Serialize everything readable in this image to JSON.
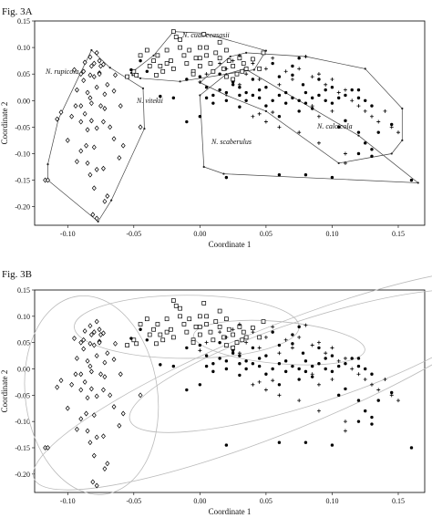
{
  "chart_data": [
    {
      "type": "scatter",
      "figure_label": "Fig. 3A",
      "xlabel": "Coordinate 1",
      "ylabel": "Coordinate 2",
      "xlim": [
        -0.125,
        0.17
      ],
      "ylim": [
        -0.235,
        0.15
      ],
      "xticks": [
        "-0.10",
        "-0.05",
        "0.00",
        "0.05",
        "0.10",
        "0.15"
      ],
      "yticks": [
        "0.15",
        "0.10",
        "0.05",
        "0.00",
        "-0.05",
        "-0.10",
        "-0.15",
        "-0.20"
      ],
      "enclosure": "convex-hull",
      "groups": [
        {
          "name": "N. rupicola",
          "label": "N. rupicola",
          "marker": "diamond",
          "hull": [
            [
              -0.115,
              -0.15
            ],
            [
              -0.115,
              -0.12
            ],
            [
              -0.107,
              -0.035
            ],
            [
              -0.082,
              0.095
            ],
            [
              -0.068,
              0.062
            ],
            [
              -0.043,
              0.023
            ],
            [
              -0.042,
              -0.053
            ],
            [
              -0.067,
              -0.188
            ],
            [
              -0.077,
              -0.228
            ]
          ]
        },
        {
          "name": "N. vitekii",
          "label": "N. vitekii",
          "marker": "circle"
        },
        {
          "name": "N. cuatrecasasii",
          "label": "N. cuatrecasasii",
          "marker": "square",
          "hull": [
            [
              -0.051,
              0.048
            ],
            [
              -0.052,
              0.052
            ],
            [
              -0.035,
              0.085
            ],
            [
              -0.02,
              0.13
            ],
            [
              0.003,
              0.127
            ],
            [
              0.05,
              0.094
            ],
            [
              0.041,
              0.058
            ],
            [
              -0.015,
              0.036
            ],
            [
              -0.045,
              0.042
            ]
          ]
        },
        {
          "name": "N. scaberulus",
          "label": "N. scaberulus",
          "marker": "circle",
          "hull": [
            [
              0.0,
              0.01
            ],
            [
              0.003,
              -0.125
            ],
            [
              0.018,
              -0.138
            ],
            [
              0.165,
              -0.155
            ],
            [
              0.12,
              -0.066
            ],
            [
              0.034,
              0.06
            ],
            [
              0.02,
              0.05
            ]
          ]
        },
        {
          "name": "N. calcicola",
          "label": "N. calcicola",
          "marker": "plus",
          "hull": [
            [
              0.0,
              0.034
            ],
            [
              0.023,
              0.083
            ],
            [
              0.035,
              0.09
            ],
            [
              0.08,
              0.083
            ],
            [
              0.125,
              0.06
            ],
            [
              0.153,
              -0.015
            ],
            [
              0.153,
              -0.075
            ],
            [
              0.145,
              -0.1
            ],
            [
              0.105,
              -0.118
            ],
            [
              0.05,
              -0.02
            ],
            [
              0.02,
              0.01
            ]
          ]
        }
      ],
      "points": {
        "diamond": [
          [
            -0.117,
            -0.15
          ],
          [
            -0.115,
            -0.15
          ],
          [
            -0.1,
            -0.075
          ],
          [
            -0.108,
            -0.035
          ],
          [
            -0.105,
            -0.022
          ],
          [
            -0.097,
            -0.03
          ],
          [
            -0.087,
            -0.025
          ],
          [
            -0.09,
            -0.01
          ],
          [
            -0.082,
            -0.005
          ],
          [
            -0.075,
            -0.01
          ],
          [
            -0.083,
            0.005
          ],
          [
            -0.09,
            -0.04
          ],
          [
            -0.085,
            -0.055
          ],
          [
            -0.078,
            -0.052
          ],
          [
            -0.073,
            -0.04
          ],
          [
            -0.068,
            -0.05
          ],
          [
            -0.065,
            -0.072
          ],
          [
            -0.08,
            -0.088
          ],
          [
            -0.086,
            -0.085
          ],
          [
            -0.09,
            -0.095
          ],
          [
            -0.085,
            -0.118
          ],
          [
            -0.078,
            -0.13
          ],
          [
            -0.083,
            -0.14
          ],
          [
            -0.073,
            -0.128
          ],
          [
            -0.08,
            -0.165
          ],
          [
            -0.07,
            -0.18
          ],
          [
            -0.072,
            -0.19
          ],
          [
            -0.078,
            -0.222
          ],
          [
            -0.081,
            -0.215
          ],
          [
            -0.093,
            -0.115
          ],
          [
            -0.045,
            -0.05
          ],
          [
            -0.058,
            -0.085
          ],
          [
            -0.061,
            -0.108
          ],
          [
            -0.088,
            0.055
          ],
          [
            -0.082,
            0.065
          ],
          [
            -0.083,
            0.082
          ],
          [
            -0.078,
            0.09
          ],
          [
            -0.076,
            0.075
          ],
          [
            -0.073,
            0.068
          ],
          [
            -0.083,
            0.048
          ],
          [
            -0.088,
            0.038
          ],
          [
            -0.076,
            0.052
          ],
          [
            -0.07,
            0.03
          ],
          [
            -0.08,
            0.045
          ],
          [
            -0.095,
            0.058
          ],
          [
            -0.087,
            0.072
          ],
          [
            -0.076,
            0.05
          ],
          [
            -0.093,
            0.02
          ],
          [
            -0.085,
            0.015
          ],
          [
            -0.078,
            0.025
          ],
          [
            -0.072,
            0.012
          ],
          [
            -0.065,
            0.018
          ],
          [
            -0.06,
            -0.01
          ],
          [
            -0.072,
            -0.015
          ],
          [
            -0.082,
            -0.038
          ],
          [
            -0.094,
            -0.01
          ],
          [
            -0.075,
            0.065
          ],
          [
            -0.08,
            0.07
          ],
          [
            -0.064,
            0.048
          ],
          [
            -0.09,
            0.05
          ]
        ],
        "circle": [
          [
            -0.045,
            0.075
          ],
          [
            -0.04,
            0.055
          ],
          [
            -0.052,
            0.058
          ],
          [
            -0.03,
            0.008
          ],
          [
            -0.02,
            0.005
          ],
          [
            -0.01,
            0.04
          ],
          [
            0.0,
            0.045
          ],
          [
            0.005,
            0.025
          ],
          [
            0.01,
            0.01
          ],
          [
            0.015,
            0.02
          ],
          [
            0.02,
            0.015
          ],
          [
            0.025,
            0.03
          ],
          [
            0.03,
            0.025
          ],
          [
            0.035,
            0.0
          ],
          [
            0.04,
            0.01
          ],
          [
            0.045,
            0.005
          ],
          [
            0.05,
            -0.01
          ],
          [
            0.055,
            0.0
          ],
          [
            0.06,
            0.01
          ],
          [
            0.065,
            -0.005
          ],
          [
            0.07,
            0.005
          ],
          [
            0.075,
            0.0
          ],
          [
            0.08,
            0.015
          ],
          [
            0.085,
            0.005
          ],
          [
            0.09,
            0.01
          ],
          [
            0.095,
            0.0
          ],
          [
            0.1,
            -0.005
          ],
          [
            0.105,
            0.005
          ],
          [
            0.11,
            0.01
          ],
          [
            0.115,
            0.02
          ],
          [
            0.12,
            0.005
          ],
          [
            0.125,
            0.0
          ],
          [
            0.13,
            -0.01
          ],
          [
            0.12,
            0.02
          ],
          [
            0.07,
            0.048
          ],
          [
            0.075,
            0.08
          ],
          [
            0.07,
            0.065
          ],
          [
            0.078,
            0.03
          ],
          [
            0.09,
            0.04
          ],
          [
            0.06,
            0.045
          ],
          [
            0.055,
            0.07
          ],
          [
            0.11,
            -0.038
          ],
          [
            0.105,
            -0.05
          ],
          [
            0.12,
            -0.06
          ],
          [
            0.125,
            -0.08
          ],
          [
            0.13,
            -0.092
          ],
          [
            0.13,
            -0.105
          ],
          [
            0.12,
            -0.1
          ],
          [
            0.135,
            -0.06
          ],
          [
            0.145,
            -0.045
          ],
          [
            0.16,
            -0.15
          ],
          [
            0.1,
            -0.145
          ],
          [
            0.08,
            -0.14
          ],
          [
            0.06,
            -0.14
          ],
          [
            0.02,
            -0.145
          ],
          [
            0.03,
            -0.012
          ],
          [
            0.0,
            -0.03
          ],
          [
            -0.01,
            -0.04
          ],
          [
            0.025,
            0.035
          ],
          [
            0.005,
            0.005
          ],
          [
            0.045,
            0.02
          ],
          [
            0.015,
            0.05
          ],
          [
            0.06,
            -0.03
          ],
          [
            0.075,
            -0.02
          ],
          [
            0.085,
            -0.015
          ],
          [
            0.095,
            0.02
          ],
          [
            0.1,
            0.025
          ],
          [
            0.065,
            0.015
          ],
          [
            0.05,
            0.025
          ],
          [
            0.04,
            0.04
          ],
          [
            0.03,
            0.01
          ],
          [
            0.02,
            0.0
          ],
          [
            0.01,
            -0.005
          ],
          [
            0.035,
            0.015
          ],
          [
            0.08,
            -0.005
          ]
        ],
        "square": [
          [
            -0.055,
            0.045
          ],
          [
            -0.05,
            0.055
          ],
          [
            -0.048,
            0.048
          ],
          [
            -0.045,
            0.085
          ],
          [
            -0.04,
            0.095
          ],
          [
            -0.035,
            0.075
          ],
          [
            -0.032,
            0.085
          ],
          [
            -0.03,
            0.065
          ],
          [
            -0.028,
            0.055
          ],
          [
            -0.025,
            0.07
          ],
          [
            -0.025,
            0.095
          ],
          [
            -0.022,
            0.075
          ],
          [
            -0.02,
            0.13
          ],
          [
            -0.018,
            0.12
          ],
          [
            -0.015,
            0.115
          ],
          [
            -0.015,
            0.1
          ],
          [
            -0.012,
            0.085
          ],
          [
            -0.01,
            0.07
          ],
          [
            -0.008,
            0.095
          ],
          [
            -0.005,
            0.055
          ],
          [
            -0.003,
            0.08
          ],
          [
            0.0,
            0.065
          ],
          [
            0.0,
            0.1
          ],
          [
            0.003,
            0.125
          ],
          [
            0.005,
            0.085
          ],
          [
            0.008,
            0.07
          ],
          [
            0.01,
            0.055
          ],
          [
            0.012,
            0.09
          ],
          [
            0.015,
            0.08
          ],
          [
            0.018,
            0.06
          ],
          [
            0.02,
            0.045
          ],
          [
            0.022,
            0.075
          ],
          [
            0.025,
            0.065
          ],
          [
            0.028,
            0.05
          ],
          [
            0.03,
            0.08
          ],
          [
            0.033,
            0.07
          ],
          [
            0.035,
            0.06
          ],
          [
            0.04,
            0.078
          ],
          [
            0.045,
            0.06
          ],
          [
            0.048,
            0.09
          ],
          [
            -0.038,
            0.065
          ],
          [
            -0.033,
            0.048
          ],
          [
            -0.02,
            0.06
          ],
          [
            -0.005,
            0.05
          ],
          [
            0.0,
            0.08
          ],
          [
            0.005,
            0.1
          ],
          [
            0.015,
            0.11
          ],
          [
            0.02,
            0.095
          ],
          [
            0.025,
            0.04
          ],
          [
            0.032,
            0.055
          ]
        ],
        "plus": [
          [
            0.02,
            0.06
          ],
          [
            0.025,
            0.075
          ],
          [
            0.03,
            0.085
          ],
          [
            0.035,
            0.05
          ],
          [
            0.04,
            0.07
          ],
          [
            0.045,
            0.04
          ],
          [
            0.05,
            0.06
          ],
          [
            0.055,
            0.08
          ],
          [
            0.06,
            0.03
          ],
          [
            0.065,
            0.055
          ],
          [
            0.07,
            0.04
          ],
          [
            0.075,
            0.06
          ],
          [
            0.08,
            0.083
          ],
          [
            0.085,
            0.045
          ],
          [
            0.09,
            0.05
          ],
          [
            0.095,
            0.03
          ],
          [
            0.1,
            0.04
          ],
          [
            0.105,
            0.015
          ],
          [
            0.11,
            0.02
          ],
          [
            0.115,
            0.0
          ],
          [
            0.12,
            -0.01
          ],
          [
            0.125,
            -0.02
          ],
          [
            0.13,
            -0.03
          ],
          [
            0.135,
            -0.04
          ],
          [
            0.14,
            -0.02
          ],
          [
            0.145,
            -0.05
          ],
          [
            0.15,
            -0.06
          ],
          [
            0.1,
            -0.02
          ],
          [
            0.09,
            -0.03
          ],
          [
            0.085,
            -0.01
          ],
          [
            0.045,
            -0.025
          ],
          [
            0.05,
            -0.04
          ],
          [
            0.06,
            -0.05
          ],
          [
            0.075,
            -0.06
          ],
          [
            0.09,
            -0.08
          ],
          [
            0.11,
            -0.1
          ],
          [
            0.11,
            -0.118
          ],
          [
            0.055,
            -0.022
          ],
          [
            0.04,
            -0.03
          ],
          [
            0.03,
            0.03
          ],
          [
            0.015,
            0.07
          ],
          [
            0.0,
            0.035
          ],
          [
            0.005,
            0.05
          ]
        ]
      }
    },
    {
      "type": "scatter",
      "figure_label": "Fig. 3B",
      "xlabel": "Coordinate 1",
      "ylabel": "Coordinate 2",
      "xlim": [
        -0.125,
        0.17
      ],
      "ylim": [
        -0.235,
        0.15
      ],
      "xticks": [
        "-0.10",
        "-0.05",
        "0.00",
        "0.05",
        "0.10",
        "0.15"
      ],
      "yticks": [
        "0.15",
        "0.10",
        "0.05",
        "0.00",
        "-0.05",
        "-0.10",
        "-0.15",
        "-0.20"
      ],
      "enclosure": "confidence-ellipse",
      "ellipses": [
        {
          "marker": "diamond",
          "cx": -0.082,
          "cy": -0.05,
          "rx": 0.05,
          "ry": 0.19,
          "angle": -8
        },
        {
          "marker": "square",
          "cx": -0.01,
          "cy": 0.08,
          "rx": 0.085,
          "ry": 0.06,
          "angle": 0
        },
        {
          "marker": "circle",
          "cx": 0.06,
          "cy": -0.02,
          "rx": 0.2,
          "ry": 0.1,
          "angle": -22
        },
        {
          "marker": "plus",
          "cx": 0.085,
          "cy": 0.015,
          "rx": 0.145,
          "ry": 0.08,
          "angle": -18
        },
        {
          "marker": "circle",
          "cx": 0.06,
          "cy": 0.05,
          "rx": 0.065,
          "ry": 0.04,
          "angle": 5
        }
      ]
    }
  ]
}
